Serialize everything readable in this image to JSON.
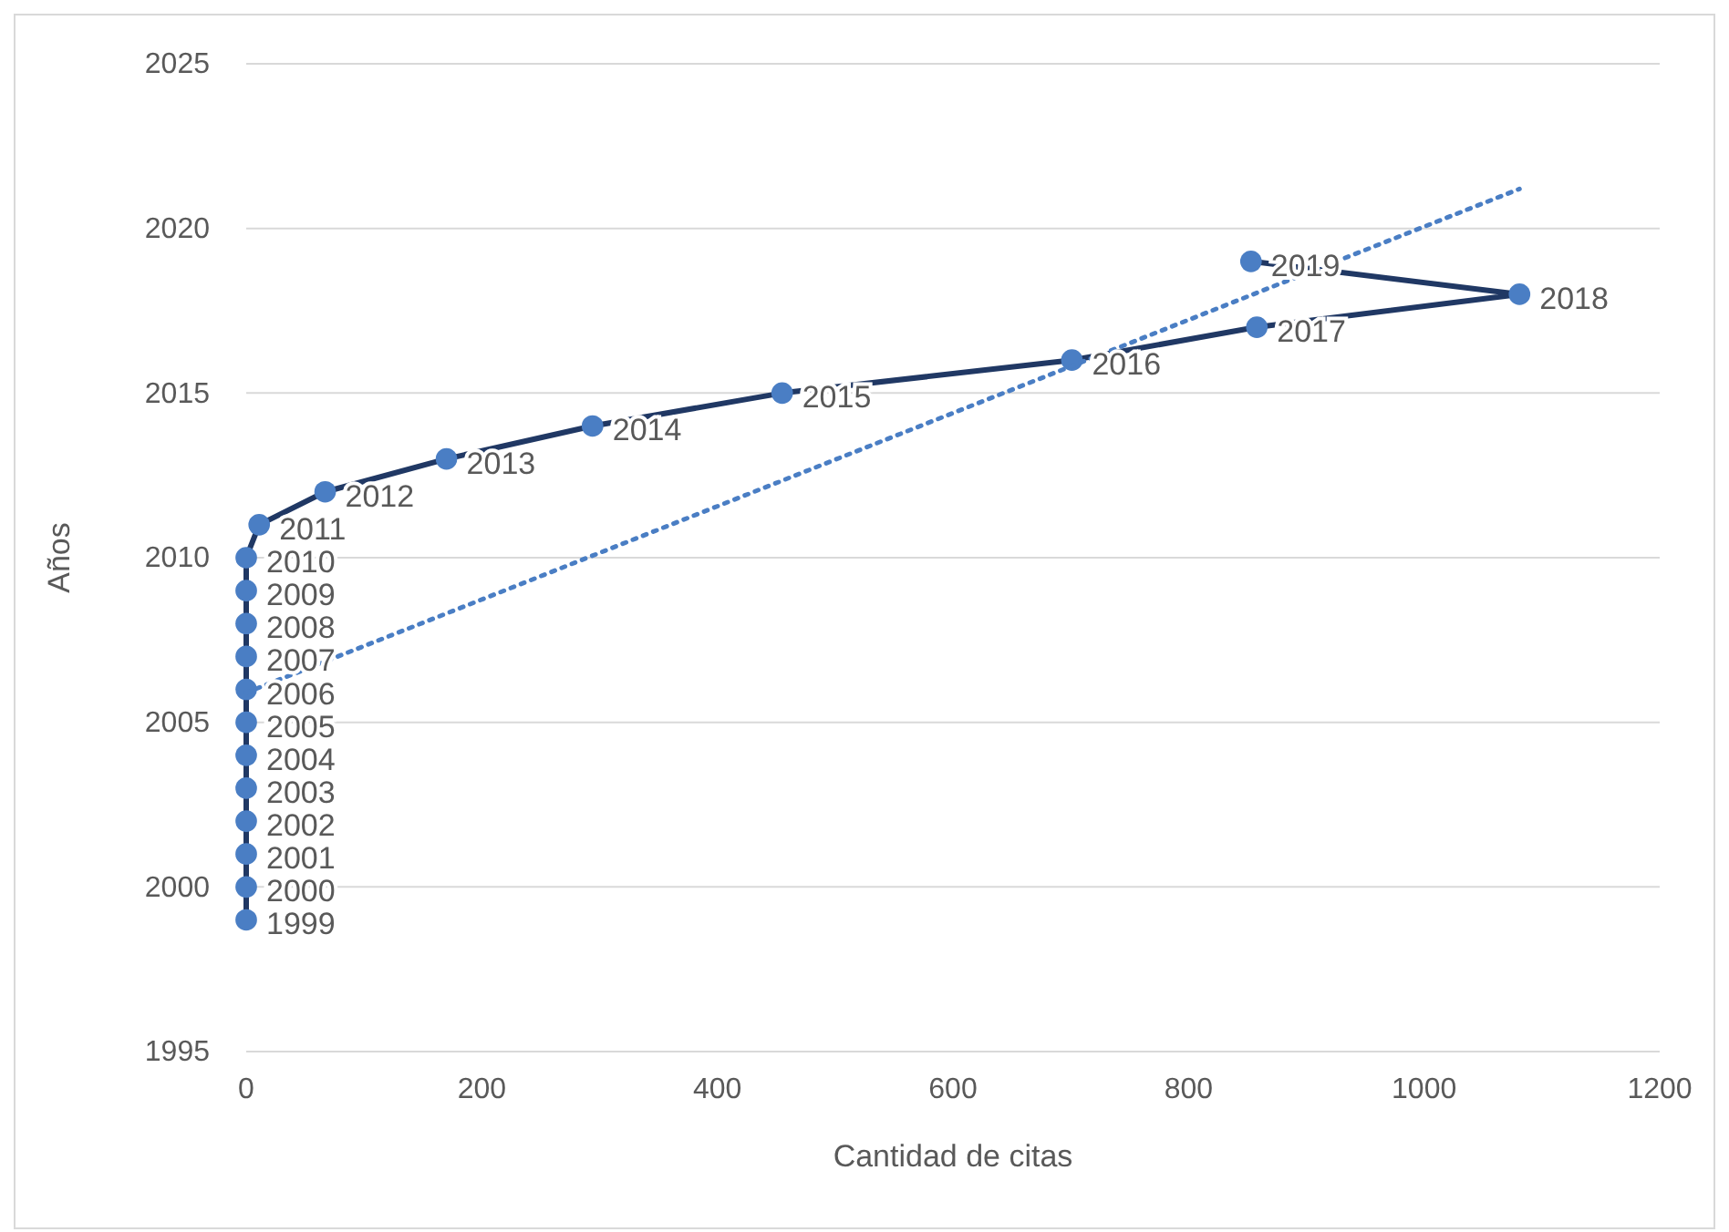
{
  "chart_data": {
    "type": "line",
    "xlabel": "Cantidad de citas",
    "ylabel": "Años",
    "xlim": [
      0,
      1200
    ],
    "xticks": [
      0,
      200,
      400,
      600,
      800,
      1000,
      1200
    ],
    "ylim": [
      1995,
      2025
    ],
    "yticks": [
      1995,
      2000,
      2005,
      2010,
      2015,
      2020,
      2025
    ],
    "grid": "y",
    "marker": "circle",
    "series": [
      {
        "value_labels": [
          "1999",
          "2000",
          "2001",
          "2002",
          "2003",
          "2004",
          "2005",
          "2006",
          "2007",
          "2008",
          "2009",
          "2010",
          "2011",
          "2012",
          "2013",
          "2014",
          "2015",
          "2016",
          "2017",
          "2018",
          "2019"
        ],
        "color": "#203864",
        "colors": [
          "#4a7ec4",
          "#4a7ec4",
          "#4a7ec4",
          "#4a7ec4",
          "#4a7ec4",
          "#4a7ec4",
          "#4a7ec4",
          "#4a7ec4",
          "#4a7ec4",
          "#4a7ec4",
          "#4a7ec4",
          "#4a7ec4",
          "#4a7ec4",
          "#4a7ec4",
          "#4a7ec4",
          "#4a7ec4",
          "#4a7ec4",
          "#4a7ec4",
          "#4a7ec4",
          "#4a7ec4",
          "#4a7ec4"
        ],
        "x": [
          0,
          0,
          0,
          0,
          0,
          0,
          0,
          0,
          0,
          0,
          0,
          0,
          11,
          67,
          170,
          294,
          455,
          701,
          858,
          1081,
          853
        ],
        "values": [
          1999,
          2000,
          2001,
          2002,
          2003,
          2004,
          2005,
          2006,
          2007,
          2008,
          2009,
          2010,
          2011,
          2012,
          2013,
          2014,
          2015,
          2016,
          2017,
          2018,
          2019
        ]
      },
      {
        "color": "#4a7ec4",
        "line_style": "dotted",
        "marker": "none",
        "x": [
          0,
          1081
        ],
        "values": [
          2005.9,
          2021.2
        ]
      }
    ]
  }
}
